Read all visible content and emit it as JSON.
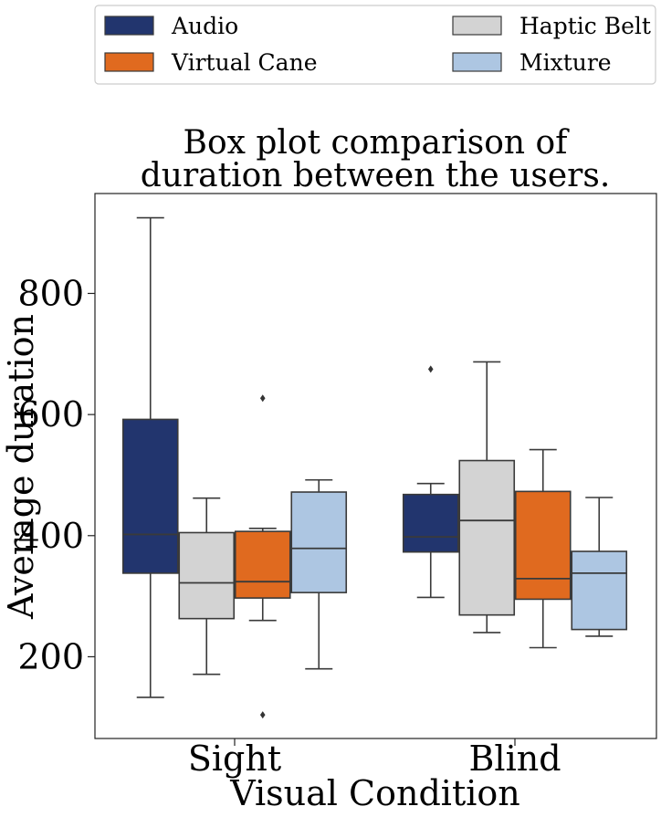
{
  "chart_data": {
    "type": "boxplot",
    "title_lines": [
      "Box plot comparison of",
      "duration between the users."
    ],
    "xlabel": "Visual Condition",
    "ylabel": "Average duration",
    "categories": [
      "Sight",
      "Blind"
    ],
    "yticks": [
      200,
      400,
      600,
      800
    ],
    "ylim": [
      65,
      965
    ],
    "legend_position": "top (outside, above title)",
    "series": [
      {
        "name": "Audio",
        "color": "#22356e",
        "boxes": [
          {
            "min": 133,
            "q1": 338,
            "median": 402,
            "q3": 592,
            "max": 925,
            "outliers": []
          },
          {
            "min": 298,
            "q1": 373,
            "median": 398,
            "q3": 468,
            "max": 486,
            "outliers": [
              675
            ]
          }
        ]
      },
      {
        "name": "Haptic Belt",
        "color": "#d3d3d3",
        "boxes": [
          {
            "min": 171,
            "q1": 263,
            "median": 322,
            "q3": 405,
            "max": 462,
            "outliers": []
          },
          {
            "min": 240,
            "q1": 269,
            "median": 425,
            "q3": 524,
            "max": 687,
            "outliers": []
          }
        ]
      },
      {
        "name": "Virtual Cane",
        "color": "#e06a1f",
        "boxes": [
          {
            "min": 260,
            "q1": 297,
            "median": 324,
            "q3": 407,
            "max": 412,
            "outliers": [
              627,
              104
            ]
          },
          {
            "min": 215,
            "q1": 295,
            "median": 329,
            "q3": 473,
            "max": 542,
            "outliers": []
          }
        ]
      },
      {
        "name": "Mixture",
        "color": "#adc6e2",
        "boxes": [
          {
            "min": 180,
            "q1": 306,
            "median": 379,
            "q3": 472,
            "max": 492,
            "outliers": []
          },
          {
            "min": 234,
            "q1": 245,
            "median": 338,
            "q3": 374,
            "max": 463,
            "outliers": []
          }
        ]
      }
    ]
  }
}
